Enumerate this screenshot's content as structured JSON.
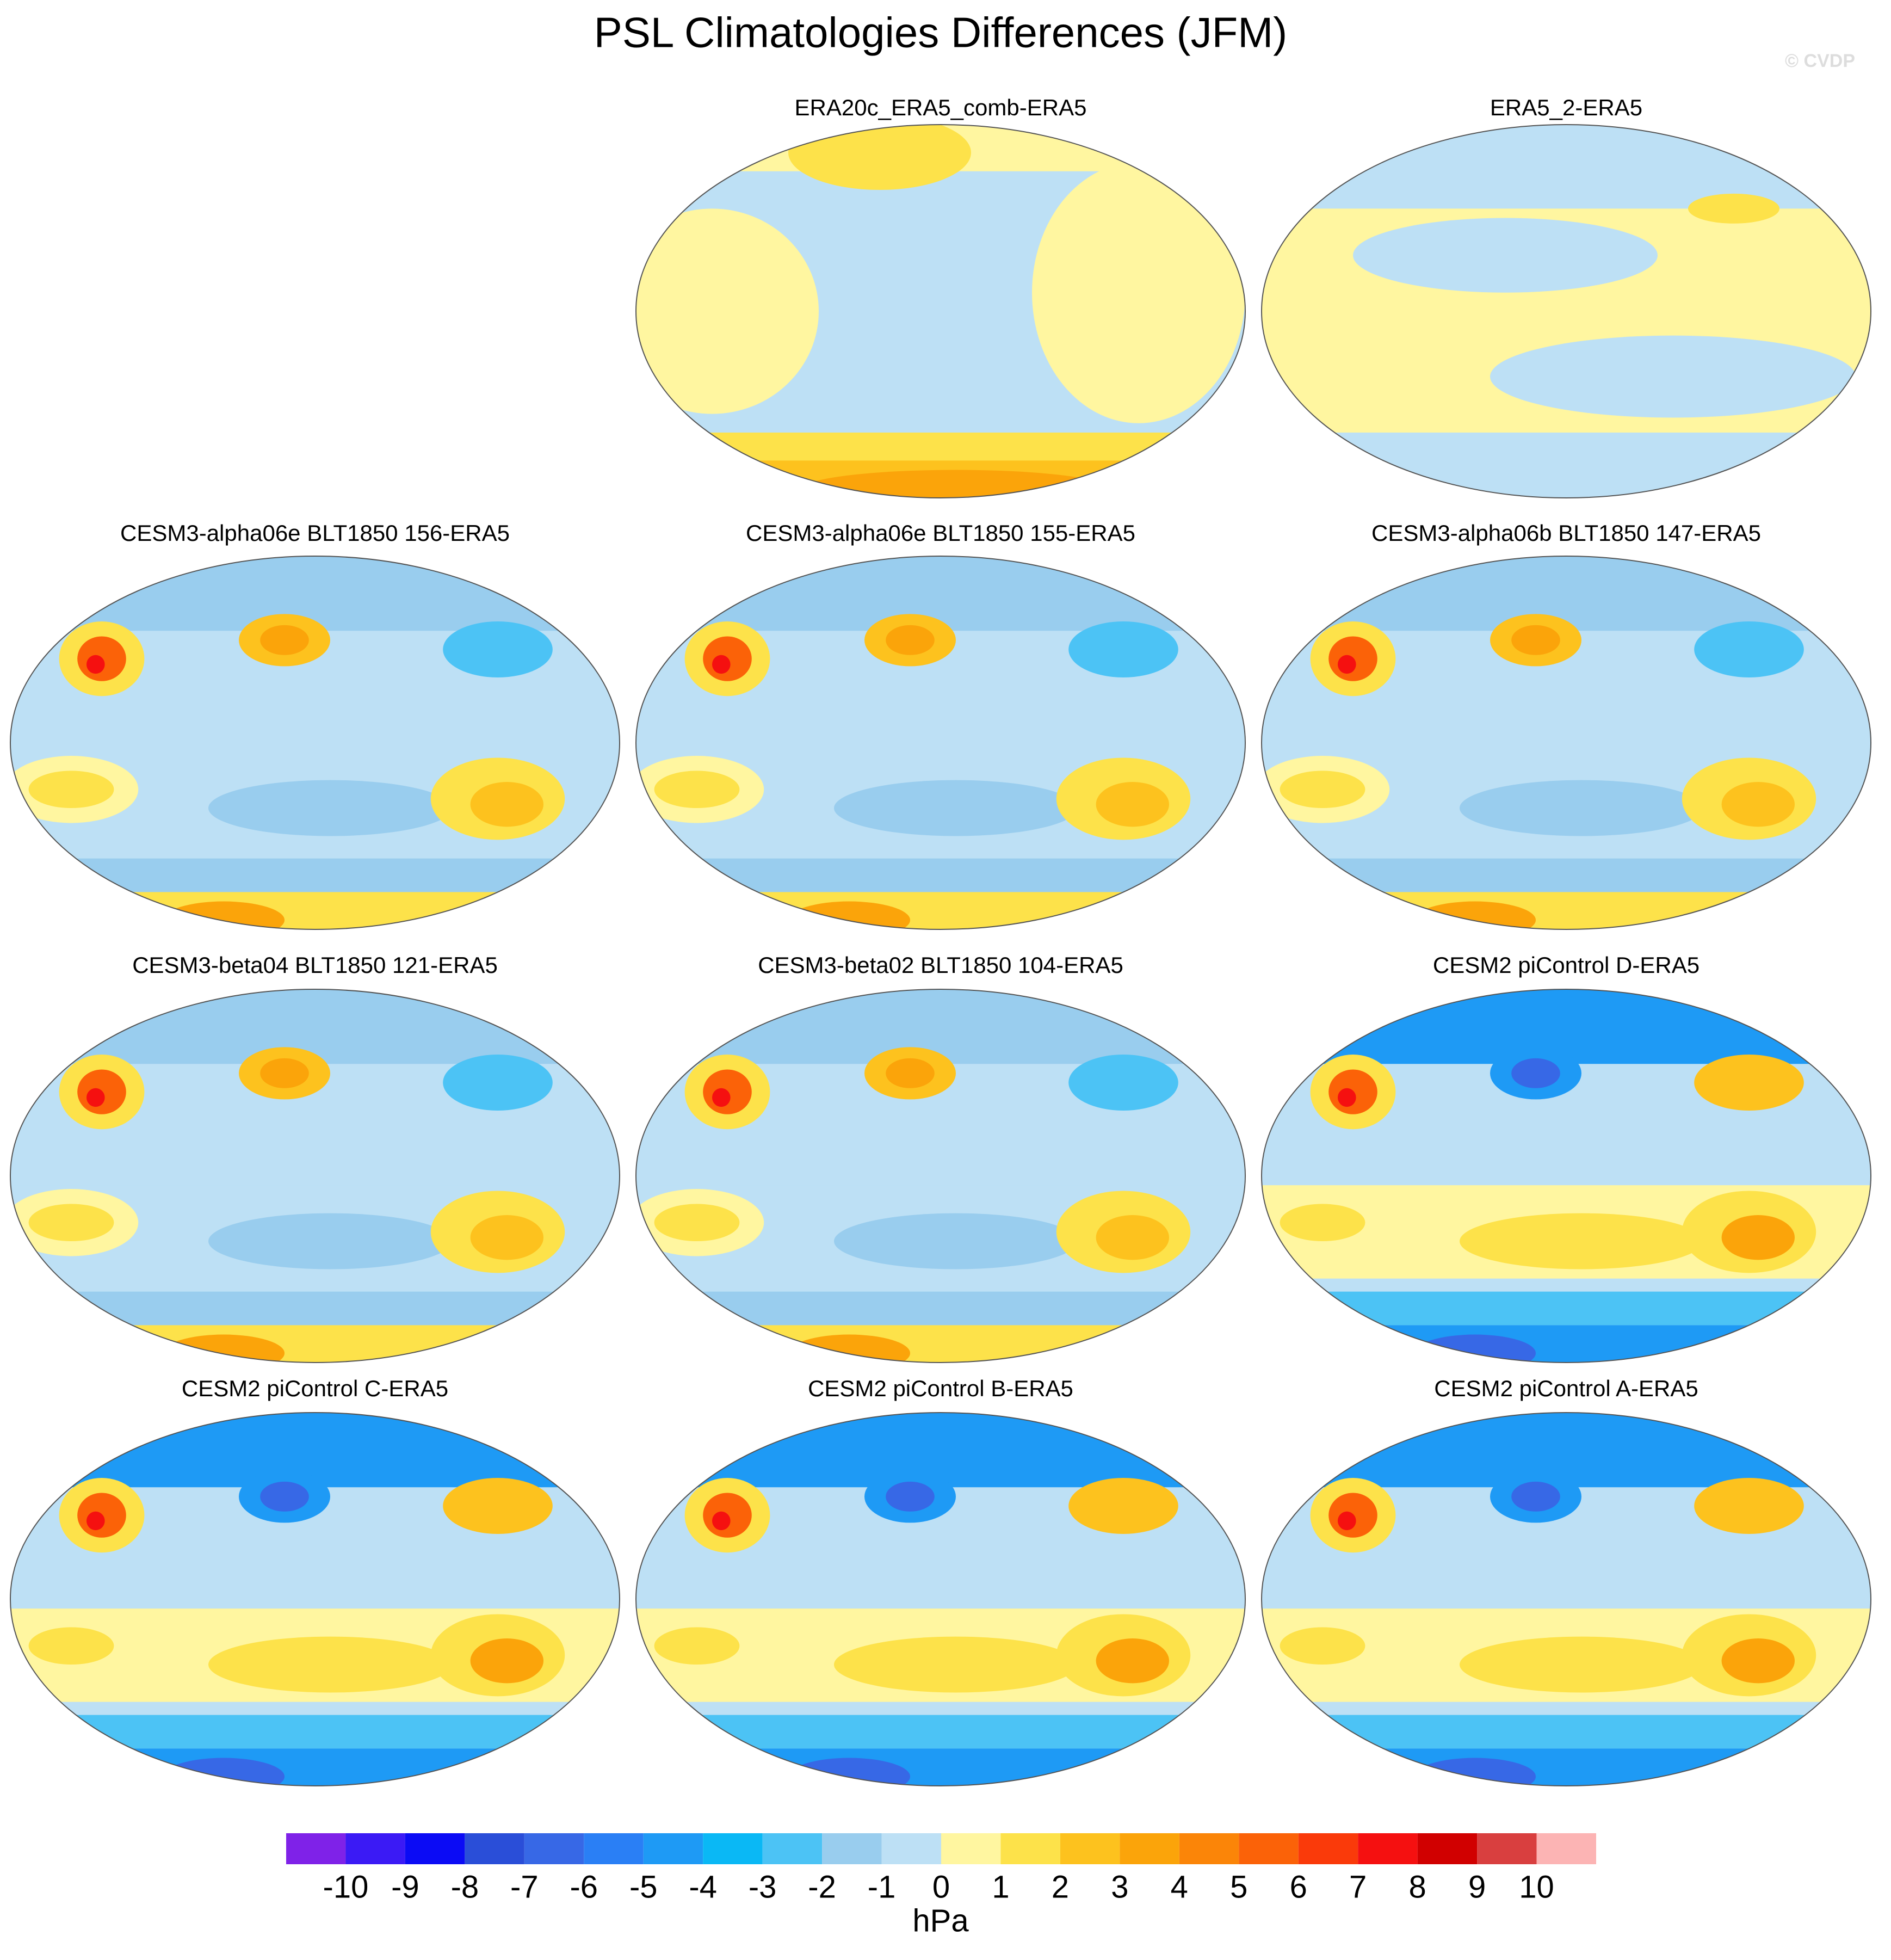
{
  "title": "PSL Climatologies Differences (JFM)",
  "watermark": "© CVDP",
  "panels": [
    {
      "title": "ERA20c_ERA5_comb-ERA5"
    },
    {
      "title": "ERA5_2-ERA5"
    },
    {
      "title": "CESM3-alpha06e BLT1850 156-ERA5"
    },
    {
      "title": "CESM3-alpha06e BLT1850 155-ERA5"
    },
    {
      "title": "CESM3-alpha06b BLT1850 147-ERA5"
    },
    {
      "title": "CESM3-beta04 BLT1850 121-ERA5"
    },
    {
      "title": "CESM3-beta02 BLT1850 104-ERA5"
    },
    {
      "title": "CESM2 piControl D-ERA5"
    },
    {
      "title": "CESM2 piControl C-ERA5"
    },
    {
      "title": "CESM2 piControl B-ERA5"
    },
    {
      "title": "CESM2 piControl A-ERA5"
    }
  ],
  "colorbar": {
    "colors": [
      "#7f22e8",
      "#3b1af5",
      "#0b0bf5",
      "#2a4ed8",
      "#3768e6",
      "#2a7ff5",
      "#1e9af5",
      "#0ab8f5",
      "#4cc3f5",
      "#99cdee",
      "#bde0f5",
      "#fff6a0",
      "#fde24a",
      "#fdc21e",
      "#fba40a",
      "#fb8508",
      "#fb6208",
      "#fa3a0a",
      "#f51010",
      "#d10000",
      "#d93f3f",
      "#fcb4b4"
    ],
    "labels": [
      -10,
      -9,
      -8,
      -7,
      -6,
      -5,
      -4,
      -3,
      -2,
      -1,
      0,
      1,
      2,
      3,
      4,
      5,
      6,
      7,
      8,
      9,
      10
    ],
    "unit": "hPa"
  }
}
